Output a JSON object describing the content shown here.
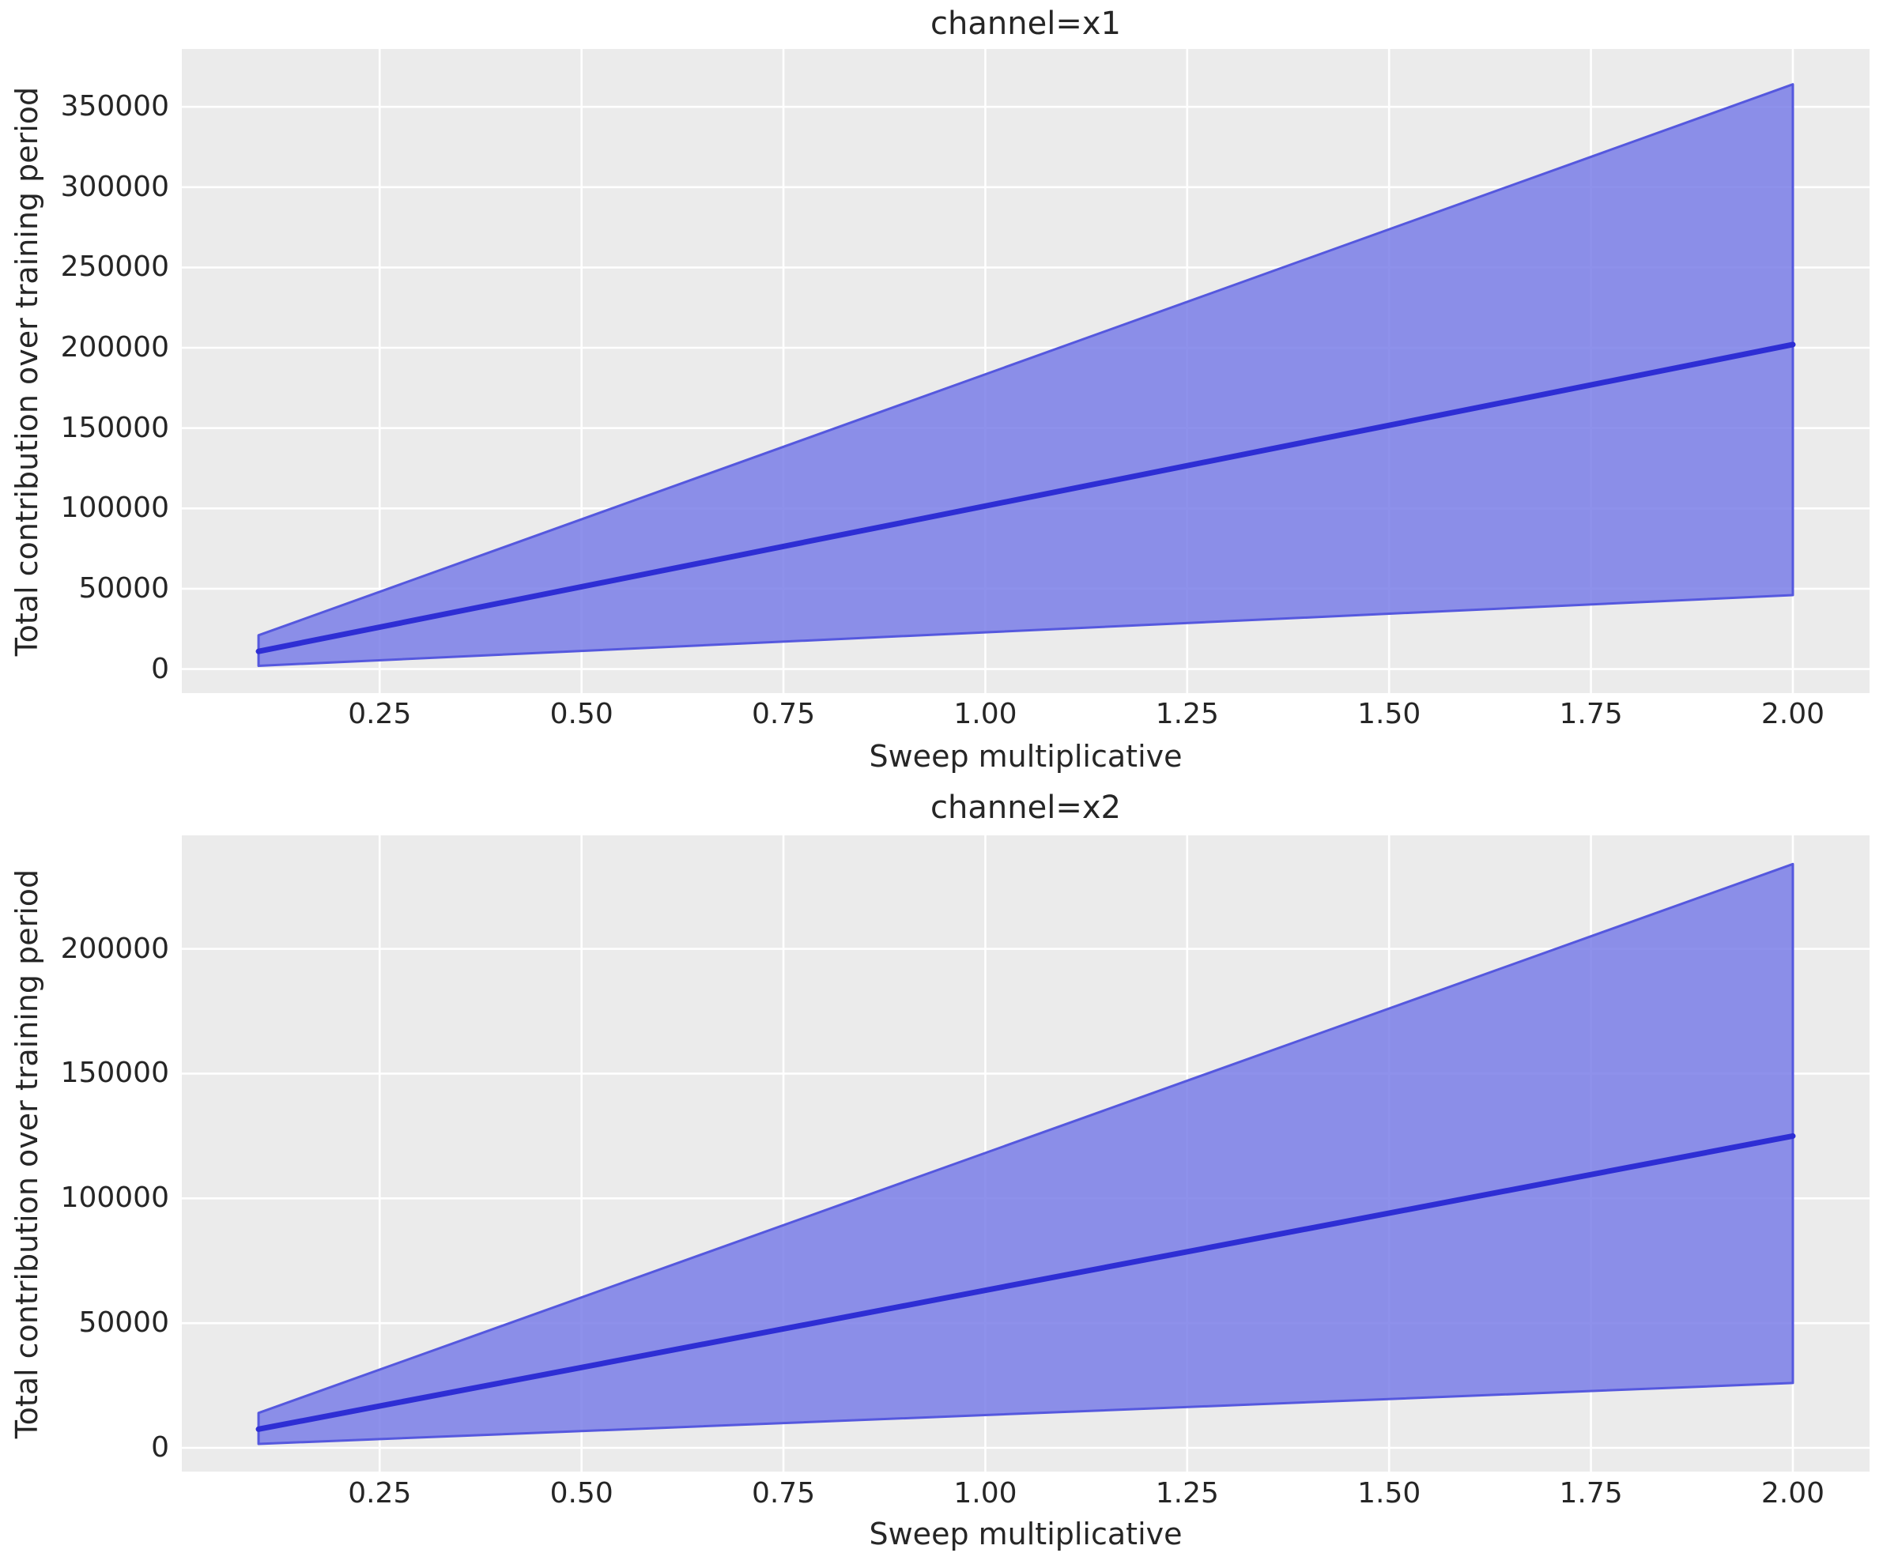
{
  "figure": {
    "background": "#ffffff",
    "plot_background": "#ebebeb",
    "grid_color": "#ffffff",
    "text_color": "#262626",
    "band_fill": "#7a7ee8",
    "band_fill_opacity": 0.85,
    "band_edge": "#5558de",
    "line_color": "#2e2ed4"
  },
  "chart_data": [
    {
      "type": "area",
      "title": "channel=x1",
      "xlabel": "Sweep multiplicative",
      "ylabel": "Total contribution over training period",
      "x": [
        0.1,
        2.0
      ],
      "series": [
        {
          "name": "mean",
          "values": [
            11000,
            202000
          ]
        },
        {
          "name": "band_lower",
          "values": [
            2000,
            46000
          ]
        },
        {
          "name": "band_upper",
          "values": [
            21000,
            364000
          ]
        }
      ],
      "xlim": [
        0.005,
        2.095
      ],
      "ylim": [
        -15000,
        386000
      ],
      "grid": true,
      "legend": "none",
      "x_ticks": [
        0.25,
        0.5,
        0.75,
        1.0,
        1.25,
        1.5,
        1.75,
        2.0
      ],
      "x_tick_labels": [
        "0.25",
        "0.50",
        "0.75",
        "1.00",
        "1.25",
        "1.50",
        "1.75",
        "2.00"
      ],
      "y_ticks": [
        0,
        50000,
        100000,
        150000,
        200000,
        250000,
        300000,
        350000
      ],
      "y_tick_labels": [
        "0",
        "50000",
        "100000",
        "150000",
        "200000",
        "250000",
        "300000",
        "350000"
      ]
    },
    {
      "type": "area",
      "title": "channel=x2",
      "xlabel": "Sweep multiplicative",
      "ylabel": "Total contribution over training period",
      "x": [
        0.1,
        2.0
      ],
      "series": [
        {
          "name": "mean",
          "values": [
            7500,
            125000
          ]
        },
        {
          "name": "band_lower",
          "values": [
            1600,
            26000
          ]
        },
        {
          "name": "band_upper",
          "values": [
            14000,
            234000
          ]
        }
      ],
      "xlim": [
        0.005,
        2.095
      ],
      "ylim": [
        -9500,
        245500
      ],
      "grid": true,
      "legend": "none",
      "x_ticks": [
        0.25,
        0.5,
        0.75,
        1.0,
        1.25,
        1.5,
        1.75,
        2.0
      ],
      "x_tick_labels": [
        "0.25",
        "0.50",
        "0.75",
        "1.00",
        "1.25",
        "1.50",
        "1.75",
        "2.00"
      ],
      "y_ticks": [
        0,
        50000,
        100000,
        150000,
        200000
      ],
      "y_tick_labels": [
        "0",
        "50000",
        "100000",
        "150000",
        "200000"
      ]
    }
  ]
}
